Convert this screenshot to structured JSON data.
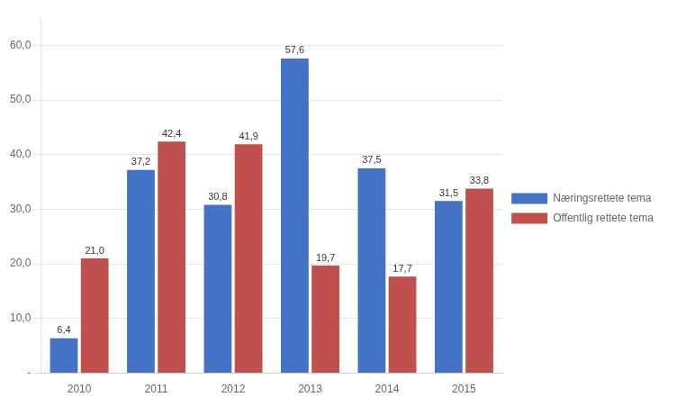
{
  "chart_data": {
    "type": "bar",
    "categories": [
      "2010",
      "2011",
      "2012",
      "2013",
      "2014",
      "2015"
    ],
    "series": [
      {
        "name": "Næringsrettete tema",
        "color": "#4472C4",
        "values": [
          6.4,
          37.2,
          30.8,
          57.6,
          37.5,
          31.5
        ],
        "value_labels": [
          "6,4",
          "37,2",
          "30,8",
          "57,6",
          "37,5",
          "31,5"
        ]
      },
      {
        "name": "Offentlig rettete tema",
        "color": "#C0504D",
        "values": [
          21.0,
          42.4,
          41.9,
          19.7,
          17.7,
          33.8
        ],
        "value_labels": [
          "21,0",
          "42,4",
          "41,9",
          "19,7",
          "17,7",
          "33,8"
        ]
      }
    ],
    "ylim": [
      0,
      65
    ],
    "yticks": [
      {
        "value": 0,
        "label": "-"
      },
      {
        "value": 10,
        "label": "10,0"
      },
      {
        "value": 20,
        "label": "20,0"
      },
      {
        "value": 30,
        "label": "30,0"
      },
      {
        "value": 40,
        "label": "40,0"
      },
      {
        "value": 50,
        "label": "50,0"
      },
      {
        "value": 60,
        "label": "60,0"
      }
    ],
    "grid": true,
    "legend": "right",
    "data_labels": true
  }
}
